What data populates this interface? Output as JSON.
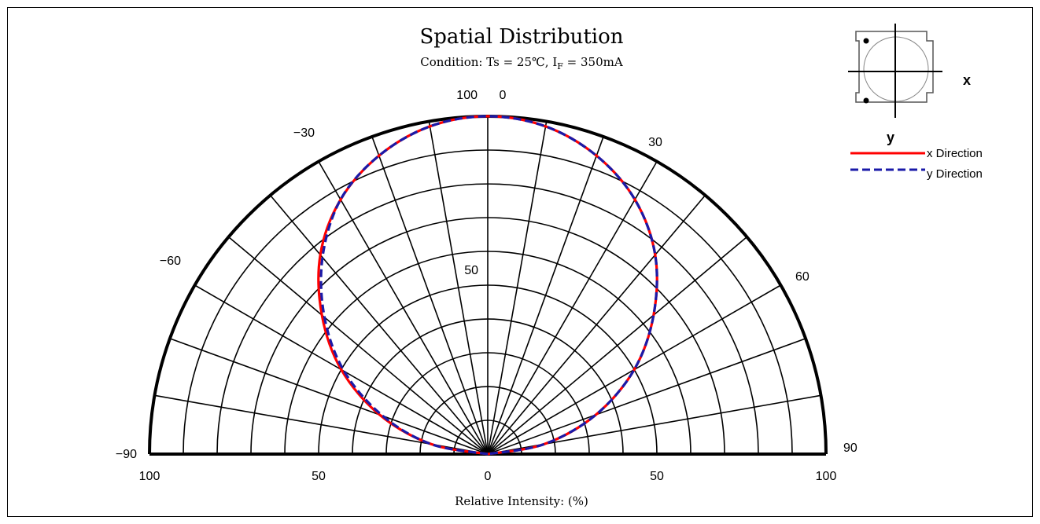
{
  "chart_data": {
    "type": "polar-half",
    "title": "Spatial Distribution",
    "subtitle": {
      "prefix": "Condition: Ts = 25℃, I",
      "subscript": "F",
      "suffix": " = 350mA"
    },
    "xlabel": "Relative Intensity: (%)",
    "radial_range": [
      0,
      100
    ],
    "angle_range_deg": [
      -90,
      90
    ],
    "angle_tick_labels": [
      {
        "angle": 0,
        "label": "0"
      },
      {
        "angle": -30,
        "label": "−30"
      },
      {
        "angle": 30,
        "label": "30"
      },
      {
        "angle": -60,
        "label": "−60"
      },
      {
        "angle": 60,
        "label": "60"
      },
      {
        "angle": -90,
        "label": "−90"
      },
      {
        "angle": 90,
        "label": "90"
      }
    ],
    "radial_tick_labels": [
      {
        "value": 100,
        "label": "100",
        "where": "top"
      },
      {
        "value": 50,
        "label": "50",
        "where": "center"
      }
    ],
    "bottom_axis_labels": [
      {
        "value": -100,
        "label": "100"
      },
      {
        "value": -50,
        "label": "50"
      },
      {
        "value": 0,
        "label": "0"
      },
      {
        "value": 50,
        "label": "50"
      },
      {
        "value": 100,
        "label": "100"
      }
    ],
    "series": [
      {
        "name": "x Direction",
        "color": "#ff0000",
        "style": "solid",
        "angles": [
          -90,
          -80,
          -70,
          -60,
          -50,
          -40,
          -30,
          -20,
          -10,
          0,
          10,
          20,
          30,
          40,
          50,
          60,
          70,
          80,
          90
        ],
        "values": [
          0,
          17,
          34,
          50,
          64,
          77,
          87,
          94,
          98.5,
          100,
          98.5,
          94,
          87,
          77,
          64,
          50,
          34,
          17,
          0
        ]
      },
      {
        "name": "y Direction",
        "color": "#1a1aa8",
        "style": "dashed",
        "angles": [
          -90,
          -80,
          -70,
          -60,
          -50,
          -40,
          -30,
          -20,
          -10,
          0,
          10,
          20,
          30,
          40,
          50,
          60,
          70,
          80,
          90
        ],
        "values": [
          0,
          17,
          33,
          49,
          63,
          76,
          87,
          94,
          98.5,
          100,
          98.5,
          94,
          87,
          77,
          64,
          50,
          34,
          17,
          0
        ]
      }
    ],
    "legend": {
      "placement": "top-right",
      "entries": [
        "x Direction",
        "y Direction"
      ]
    },
    "inset": {
      "x_label": "x",
      "y_label": "y"
    }
  }
}
